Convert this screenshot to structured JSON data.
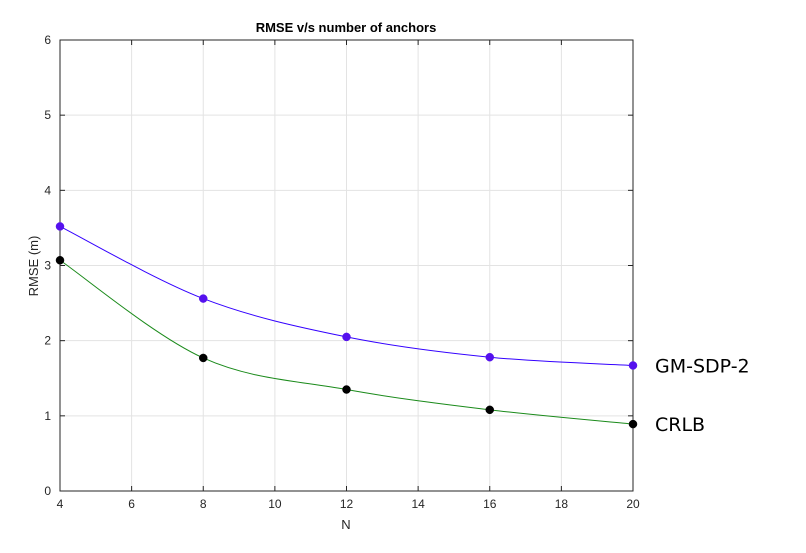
{
  "chart_data": {
    "type": "line",
    "title": "RMSE v/s number of anchors",
    "xlabel": "N",
    "ylabel": "RMSE (m)",
    "xlim": [
      4,
      20
    ],
    "ylim": [
      0,
      6
    ],
    "x_ticks": [
      4,
      6,
      8,
      10,
      12,
      14,
      16,
      18,
      20
    ],
    "y_ticks": [
      0,
      1,
      2,
      3,
      4,
      5,
      6
    ],
    "grid": true,
    "legend": "direct labels at right end of each line",
    "x": [
      4,
      8,
      12,
      16,
      20
    ],
    "series": [
      {
        "name": "GM-SDP-2",
        "values": [
          3.52,
          2.56,
          2.05,
          1.78,
          1.67
        ],
        "line_color": "#3300ff",
        "marker_color": "#5511ee"
      },
      {
        "name": "CRLB",
        "values": [
          3.07,
          1.77,
          1.35,
          1.08,
          0.89
        ],
        "line_color": "#1a8a1a",
        "marker_color": "#000000"
      }
    ]
  }
}
